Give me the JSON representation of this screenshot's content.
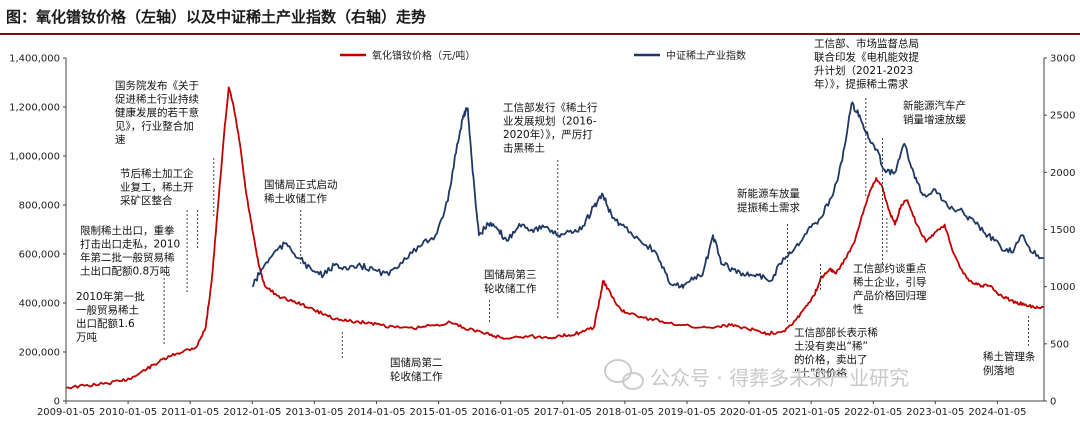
{
  "title": "图：氧化镨钕价格（左轴）以及中证稀土产业指数（右轴）走势",
  "chart_data": {
    "type": "line",
    "title": "图：氧化镨钕价格（左轴）以及中证稀土产业指数（右轴）走势",
    "x_ticks": [
      "2009-01-05",
      "2010-01-05",
      "2011-01-05",
      "2012-01-05",
      "2013-01-05",
      "2014-01-05",
      "2015-01-05",
      "2016-01-05",
      "2017-01-05",
      "2018-01-05",
      "2019-01-05",
      "2020-01-05",
      "2021-01-05",
      "2022-01-05",
      "2023-01-05",
      "2024-01-05"
    ],
    "x_range": [
      2009.0,
      2024.75
    ],
    "y_left": {
      "ticks": [
        "0",
        "200,000",
        "400,000",
        "600,000",
        "800,000",
        "1,000,000",
        "1,200,000",
        "1,400,000"
      ],
      "range": [
        0,
        1400000
      ]
    },
    "y_right": {
      "ticks": [
        "0",
        "500",
        "1000",
        "1500",
        "2000",
        "2500",
        "3000"
      ],
      "range": [
        0,
        3000
      ]
    },
    "series": [
      {
        "name": "氧化镨钕价格（元/吨）",
        "axis": "left",
        "color": "#c00000",
        "points": [
          [
            2009.0,
            55000
          ],
          [
            2009.3,
            62000
          ],
          [
            2009.6,
            70000
          ],
          [
            2009.9,
            82000
          ],
          [
            2010.1,
            100000
          ],
          [
            2010.3,
            130000
          ],
          [
            2010.5,
            160000
          ],
          [
            2010.7,
            185000
          ],
          [
            2010.9,
            205000
          ],
          [
            2011.1,
            220000
          ],
          [
            2011.25,
            300000
          ],
          [
            2011.35,
            500000
          ],
          [
            2011.45,
            800000
          ],
          [
            2011.55,
            1100000
          ],
          [
            2011.62,
            1280000
          ],
          [
            2011.7,
            1200000
          ],
          [
            2011.8,
            1050000
          ],
          [
            2011.9,
            850000
          ],
          [
            2012.0,
            700000
          ],
          [
            2012.1,
            560000
          ],
          [
            2012.2,
            470000
          ],
          [
            2012.4,
            430000
          ],
          [
            2012.6,
            410000
          ],
          [
            2012.8,
            395000
          ],
          [
            2013.0,
            370000
          ],
          [
            2013.2,
            350000
          ],
          [
            2013.4,
            330000
          ],
          [
            2013.6,
            325000
          ],
          [
            2013.8,
            320000
          ],
          [
            2014.0,
            315000
          ],
          [
            2014.3,
            300000
          ],
          [
            2014.6,
            295000
          ],
          [
            2014.9,
            310000
          ],
          [
            2015.2,
            320000
          ],
          [
            2015.4,
            300000
          ],
          [
            2015.7,
            280000
          ],
          [
            2015.9,
            265000
          ],
          [
            2016.1,
            255000
          ],
          [
            2016.4,
            265000
          ],
          [
            2016.7,
            260000
          ],
          [
            2016.9,
            262000
          ],
          [
            2017.1,
            270000
          ],
          [
            2017.3,
            280000
          ],
          [
            2017.5,
            300000
          ],
          [
            2017.6,
            420000
          ],
          [
            2017.65,
            490000
          ],
          [
            2017.72,
            460000
          ],
          [
            2017.85,
            400000
          ],
          [
            2018.0,
            360000
          ],
          [
            2018.3,
            340000
          ],
          [
            2018.6,
            325000
          ],
          [
            2018.9,
            310000
          ],
          [
            2019.2,
            300000
          ],
          [
            2019.5,
            305000
          ],
          [
            2019.7,
            310000
          ],
          [
            2019.9,
            300000
          ],
          [
            2020.1,
            290000
          ],
          [
            2020.3,
            275000
          ],
          [
            2020.55,
            285000
          ],
          [
            2020.75,
            330000
          ],
          [
            2020.9,
            380000
          ],
          [
            2021.05,
            430000
          ],
          [
            2021.15,
            500000
          ],
          [
            2021.3,
            540000
          ],
          [
            2021.4,
            520000
          ],
          [
            2021.55,
            580000
          ],
          [
            2021.7,
            650000
          ],
          [
            2021.85,
            780000
          ],
          [
            2021.95,
            860000
          ],
          [
            2022.05,
            910000
          ],
          [
            2022.15,
            870000
          ],
          [
            2022.25,
            780000
          ],
          [
            2022.35,
            720000
          ],
          [
            2022.45,
            800000
          ],
          [
            2022.55,
            820000
          ],
          [
            2022.7,
            720000
          ],
          [
            2022.85,
            650000
          ],
          [
            2023.0,
            690000
          ],
          [
            2023.15,
            720000
          ],
          [
            2023.3,
            600000
          ],
          [
            2023.45,
            520000
          ],
          [
            2023.6,
            480000
          ],
          [
            2023.75,
            470000
          ],
          [
            2023.9,
            470000
          ],
          [
            2024.0,
            440000
          ],
          [
            2024.15,
            420000
          ],
          [
            2024.3,
            400000
          ],
          [
            2024.45,
            395000
          ],
          [
            2024.6,
            380000
          ],
          [
            2024.75,
            383000
          ]
        ]
      },
      {
        "name": "中证稀土产业指数",
        "axis": "right",
        "color": "#1f3864",
        "points": [
          [
            2012.0,
            1000
          ],
          [
            2012.15,
            1150
          ],
          [
            2012.35,
            1300
          ],
          [
            2012.55,
            1380
          ],
          [
            2012.75,
            1250
          ],
          [
            2012.95,
            1150
          ],
          [
            2013.15,
            1100
          ],
          [
            2013.35,
            1200
          ],
          [
            2013.55,
            1150
          ],
          [
            2013.75,
            1180
          ],
          [
            2013.95,
            1150
          ],
          [
            2014.2,
            1100
          ],
          [
            2014.45,
            1250
          ],
          [
            2014.7,
            1350
          ],
          [
            2014.95,
            1450
          ],
          [
            2015.15,
            1750
          ],
          [
            2015.3,
            2250
          ],
          [
            2015.4,
            2500
          ],
          [
            2015.47,
            2560
          ],
          [
            2015.55,
            2000
          ],
          [
            2015.65,
            1450
          ],
          [
            2015.8,
            1550
          ],
          [
            2015.95,
            1500
          ],
          [
            2016.1,
            1400
          ],
          [
            2016.3,
            1550
          ],
          [
            2016.5,
            1500
          ],
          [
            2016.7,
            1520
          ],
          [
            2016.9,
            1450
          ],
          [
            2017.1,
            1480
          ],
          [
            2017.3,
            1500
          ],
          [
            2017.5,
            1700
          ],
          [
            2017.65,
            1800
          ],
          [
            2017.8,
            1600
          ],
          [
            2018.0,
            1520
          ],
          [
            2018.25,
            1400
          ],
          [
            2018.5,
            1300
          ],
          [
            2018.7,
            1050
          ],
          [
            2018.9,
            1000
          ],
          [
            2019.05,
            1050
          ],
          [
            2019.25,
            1100
          ],
          [
            2019.42,
            1450
          ],
          [
            2019.55,
            1200
          ],
          [
            2019.75,
            1150
          ],
          [
            2019.95,
            1100
          ],
          [
            2020.15,
            1100
          ],
          [
            2020.35,
            1050
          ],
          [
            2020.55,
            1250
          ],
          [
            2020.75,
            1350
          ],
          [
            2020.95,
            1500
          ],
          [
            2021.15,
            1600
          ],
          [
            2021.35,
            1800
          ],
          [
            2021.5,
            2100
          ],
          [
            2021.65,
            2600
          ],
          [
            2021.78,
            2500
          ],
          [
            2021.92,
            2300
          ],
          [
            2022.05,
            2200
          ],
          [
            2022.2,
            2000
          ],
          [
            2022.35,
            2000
          ],
          [
            2022.5,
            2250
          ],
          [
            2022.65,
            2000
          ],
          [
            2022.8,
            1800
          ],
          [
            2023.0,
            1850
          ],
          [
            2023.2,
            1700
          ],
          [
            2023.45,
            1650
          ],
          [
            2023.65,
            1550
          ],
          [
            2023.85,
            1450
          ],
          [
            2024.05,
            1350
          ],
          [
            2024.25,
            1300
          ],
          [
            2024.4,
            1450
          ],
          [
            2024.55,
            1300
          ],
          [
            2024.75,
            1250
          ]
        ]
      }
    ],
    "annotations": [
      {
        "lines": [
          "2010年第一批",
          "一般贸易稀土",
          "出口配额1.6",
          "万吨"
        ],
        "event_x": 2010.58
      },
      {
        "lines": [
          "限制稀土出口，重拳",
          "打击出口走私，2010",
          "年第二批一般贸易稀",
          "土出口配额0.8万吨"
        ],
        "event_x": 2010.95
      },
      {
        "lines": [
          "节后稀土加工企",
          "业复工，稀土开",
          "采矿区整合"
        ],
        "event_x": 2011.12
      },
      {
        "lines": [
          "国务院发布《关于",
          "促进稀土行业持续",
          "健康发展的若干意",
          "见》，行业整合加",
          "速"
        ],
        "event_x": 2011.38
      },
      {
        "lines": [
          "国储局正式启动",
          "稀土收储工作"
        ],
        "event_x": 2012.78
      },
      {
        "lines": [
          "国储局第二",
          "轮收储工作"
        ],
        "event_x": 2013.45
      },
      {
        "lines": [
          "工信部发行《稀土行",
          "业发展规划（2016-",
          "2020年）》，严厉打",
          "击黑稀土"
        ],
        "event_x": 2016.92
      },
      {
        "lines": [
          "国储局第三",
          "轮收储工作"
        ],
        "event_x": 2015.82
      },
      {
        "lines": [
          "新能源车放量",
          "提振稀土需求"
        ],
        "event_x": 2020.62
      },
      {
        "lines": [
          "工信部部长表示稀",
          "土没有卖出“稀”",
          "的价格，卖出了",
          "“土”的价格"
        ],
        "event_x": 2021.15
      },
      {
        "lines": [
          "工信部、市场监督总局",
          "联合印发《电机能效提",
          "升计划（2021-2023",
          "年）》，提振稀土需求"
        ],
        "event_x": 2021.88
      },
      {
        "lines": [
          "新能源汽车产",
          "销量增速放缓"
        ],
        "event_x": 2022.15
      },
      {
        "lines": [
          "工信部约谈重点",
          "稀土企业，引导",
          "产品价格回归理",
          "性"
        ],
        "event_x": 2022.22
      },
      {
        "lines": [
          "稀土管理条",
          "例落地"
        ],
        "event_x": 2024.5
      }
    ]
  },
  "watermark": "公众号 · 得葬多未来产业研究"
}
